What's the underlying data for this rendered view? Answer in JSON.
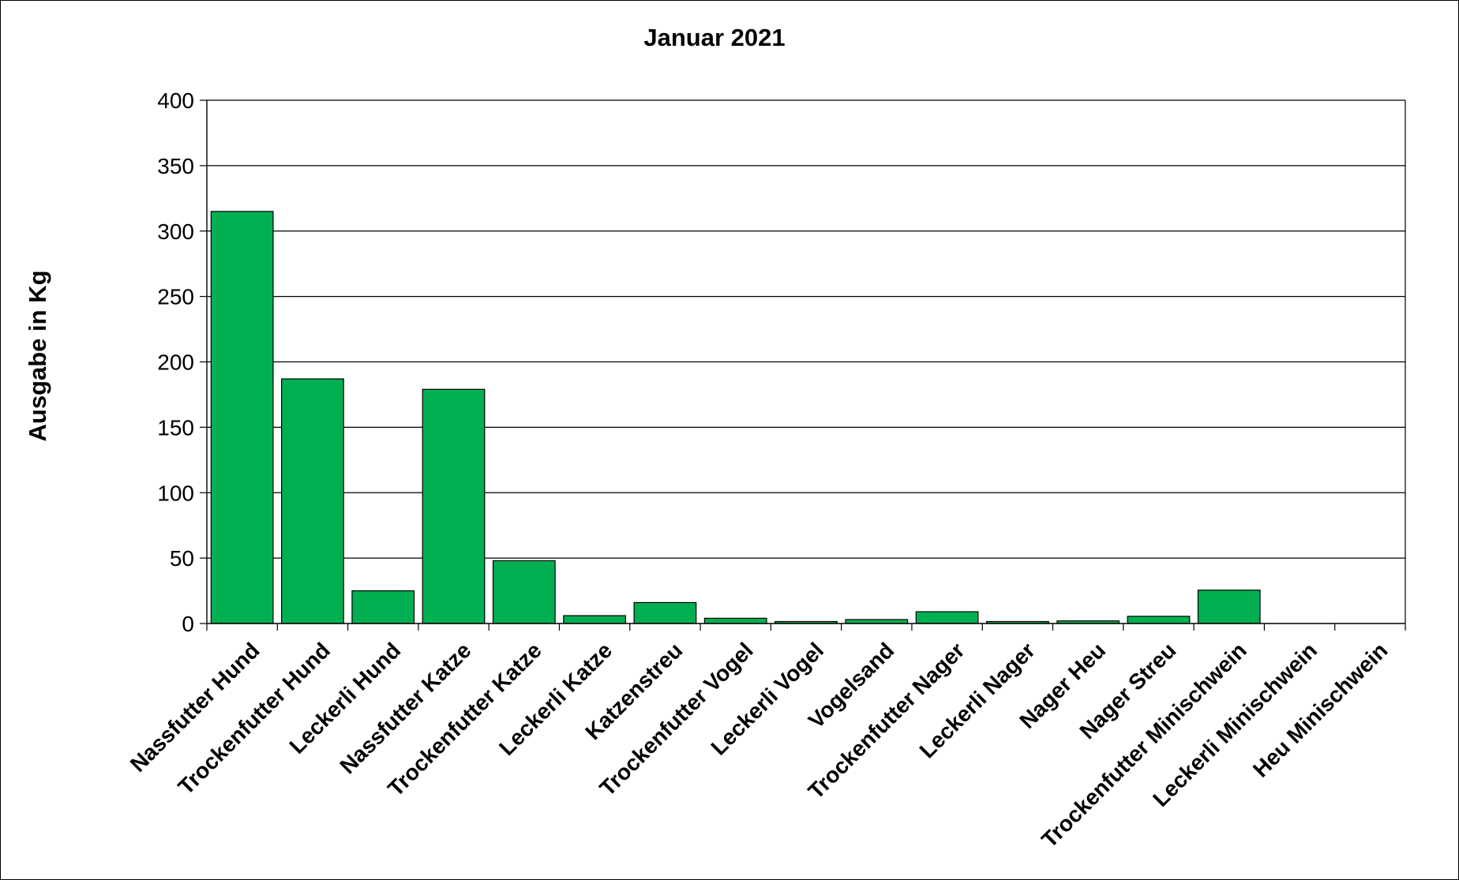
{
  "chart_data": {
    "type": "bar",
    "title": "Januar 2021",
    "xlabel": "",
    "ylabel": "Ausgabe in Kg",
    "ylim": [
      0,
      400
    ],
    "yticks": [
      0,
      50,
      100,
      150,
      200,
      250,
      300,
      350,
      400
    ],
    "grid": true,
    "legend": "none",
    "bar_color": "#00b050",
    "categories": [
      "Nassfutter Hund",
      "Trockenfutter Hund",
      "Leckerli Hund",
      "Nassfutter Katze",
      "Trockenfutter Katze",
      "Leckerli Katze",
      "Katzenstreu",
      "Trockenfutter Vogel",
      "Leckerli Vogel",
      "Vogelsand",
      "Trockenfutter Nager",
      "Leckerli Nager",
      "Nager Heu",
      "Nager Streu",
      "Trockenfutter Minischwein",
      "Leckerli Minischwein",
      "Heu Minischwein"
    ],
    "values": [
      315,
      187,
      25,
      179,
      48,
      6,
      16,
      4,
      1.5,
      3,
      9,
      1.5,
      2,
      5.5,
      25.5,
      0,
      0
    ]
  }
}
